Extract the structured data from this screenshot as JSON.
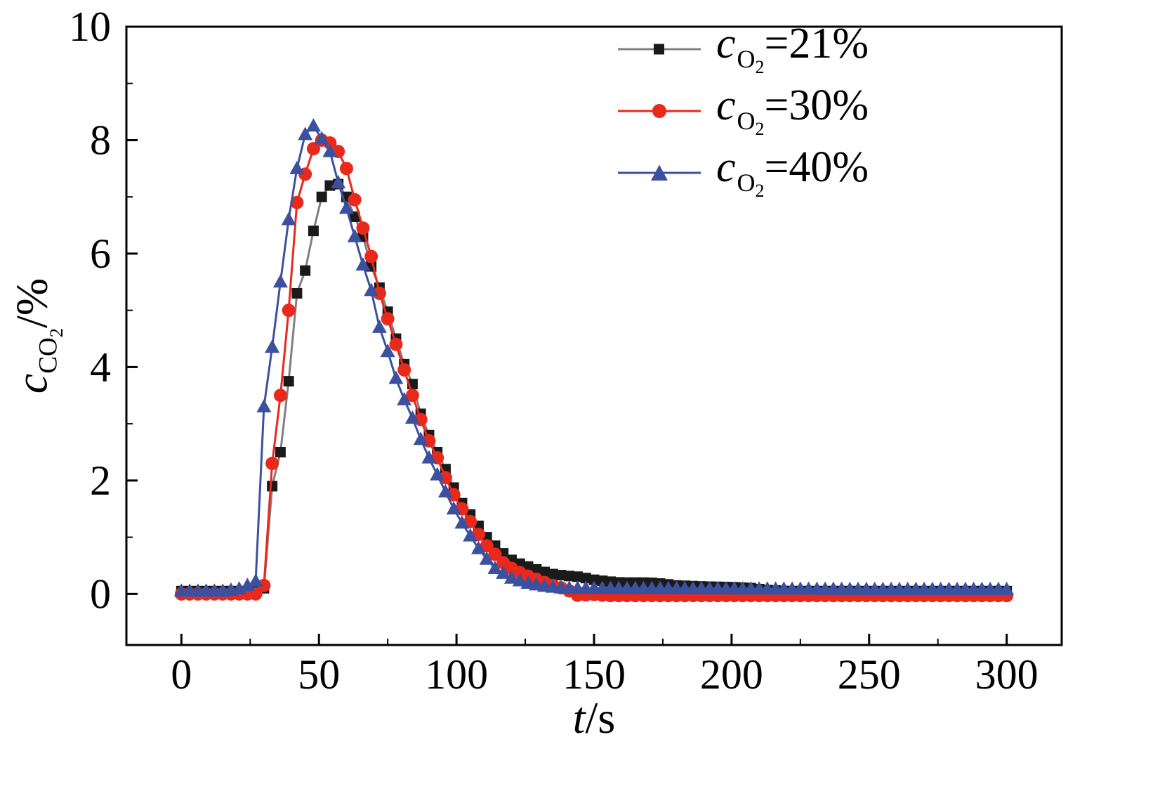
{
  "chart_data": {
    "type": "line",
    "title": "",
    "xlabel": "t/s",
    "ylabel": "c_CO2/%",
    "xlim": [
      -20,
      320
    ],
    "ylim": [
      -0.9,
      10
    ],
    "x_ticks": [
      0,
      50,
      100,
      150,
      200,
      250,
      300
    ],
    "y_ticks": [
      0,
      2,
      4,
      6,
      8,
      10
    ],
    "x_minor_step": 25,
    "y_minor_step": 1,
    "grid": false,
    "legend_position": "top-right-inside",
    "marker_resample_step": 3,
    "series": [
      {
        "id": "co2-21",
        "name": "cO2=21%",
        "marker": "square",
        "color": "#1a1a1a",
        "line_color": "#808080",
        "x": [
          0,
          20,
          27,
          30,
          32,
          33,
          34,
          35,
          36,
          37,
          38,
          40,
          41,
          42,
          43,
          45,
          47,
          48,
          50,
          52,
          54,
          56,
          58,
          60,
          62,
          64,
          66,
          68,
          70,
          72,
          74,
          76,
          78,
          80,
          82,
          84,
          86,
          88,
          90,
          92,
          94,
          96,
          98,
          100,
          102,
          104,
          106,
          108,
          110,
          112,
          114,
          116,
          118,
          120,
          122,
          125,
          128,
          131,
          135,
          140,
          145,
          150,
          155,
          160,
          170,
          175,
          180,
          190,
          200,
          208,
          212,
          220,
          250,
          300
        ],
        "y": [
          0.05,
          0.05,
          0.05,
          0.1,
          0.3,
          1.9,
          2.0,
          2.4,
          2.5,
          3.0,
          3.3,
          4.2,
          5.0,
          5.3,
          5.45,
          5.7,
          5.75,
          6.4,
          6.9,
          7.1,
          7.2,
          7.25,
          7.2,
          7.0,
          6.8,
          6.5,
          6.3,
          5.9,
          5.65,
          5.4,
          5.15,
          4.8,
          4.5,
          4.2,
          3.9,
          3.7,
          3.3,
          3.05,
          2.8,
          2.6,
          2.4,
          2.2,
          2.0,
          1.75,
          1.6,
          1.45,
          1.35,
          1.2,
          1.05,
          0.95,
          0.85,
          0.75,
          0.68,
          0.6,
          0.55,
          0.5,
          0.45,
          0.4,
          0.35,
          0.32,
          0.3,
          0.25,
          0.22,
          0.2,
          0.2,
          0.18,
          0.15,
          0.13,
          0.12,
          0.1,
          0.07,
          0.05,
          0.05,
          0.05
        ]
      },
      {
        "id": "co2-30",
        "name": "cO2=30%",
        "marker": "circle",
        "color": "#e8291c",
        "line_color": "#e8291c",
        "x": [
          0,
          20,
          28,
          30,
          31,
          32,
          33,
          34,
          35,
          36,
          37,
          38,
          39,
          40,
          41,
          42,
          43,
          45,
          46,
          48,
          50,
          52,
          54,
          56,
          58,
          60,
          62,
          64,
          66,
          68,
          70,
          71,
          72,
          74,
          76,
          78,
          80,
          82,
          84,
          86,
          88,
          90,
          92,
          94,
          96,
          98,
          100,
          102,
          104,
          106,
          108,
          110,
          112,
          114,
          116,
          118,
          120,
          122,
          125,
          128,
          131,
          135,
          140,
          145,
          148,
          155,
          200,
          250,
          300
        ],
        "y": [
          0.0,
          0.0,
          0.0,
          0.15,
          0.3,
          2.0,
          2.3,
          2.6,
          3.0,
          3.5,
          4.3,
          4.4,
          5.0,
          6.0,
          6.3,
          6.9,
          7.0,
          7.4,
          7.6,
          7.85,
          8.0,
          8.0,
          7.95,
          7.85,
          7.75,
          7.5,
          7.1,
          6.8,
          6.45,
          6.1,
          5.8,
          5.65,
          5.3,
          5.0,
          4.7,
          4.4,
          4.1,
          3.8,
          3.5,
          3.2,
          2.95,
          2.7,
          2.5,
          2.3,
          2.05,
          1.85,
          1.65,
          1.5,
          1.35,
          1.2,
          1.05,
          0.9,
          0.8,
          0.7,
          0.6,
          0.5,
          0.45,
          0.4,
          0.33,
          0.28,
          0.22,
          0.15,
          0.08,
          -0.05,
          0.0,
          -0.03,
          -0.03,
          -0.03,
          -0.03
        ]
      },
      {
        "id": "co2-40",
        "name": "cO2=40%",
        "marker": "triangle",
        "color": "#3c50a0",
        "line_color": "#3c50a0",
        "x": [
          0,
          15,
          20,
          22,
          24,
          26,
          28,
          29,
          30,
          31,
          32,
          33,
          34,
          35,
          36,
          37,
          38,
          39,
          40,
          41,
          42,
          43,
          44,
          45,
          46,
          47,
          48,
          50,
          52,
          54,
          55,
          56,
          58,
          60,
          62,
          63,
          64,
          66,
          68,
          70,
          71,
          72,
          74,
          76,
          78,
          80,
          82,
          84,
          86,
          88,
          90,
          92,
          94,
          96,
          98,
          100,
          102,
          104,
          106,
          108,
          110,
          112,
          114,
          116,
          118,
          120,
          122,
          125,
          130,
          135,
          140,
          150,
          200,
          250,
          300
        ],
        "y": [
          0.05,
          0.05,
          0.08,
          0.1,
          0.15,
          0.2,
          0.25,
          0.3,
          3.3,
          3.35,
          4.0,
          4.35,
          5.0,
          5.4,
          5.5,
          6.0,
          6.3,
          6.6,
          7.0,
          7.3,
          7.5,
          7.8,
          8.0,
          8.1,
          8.2,
          8.3,
          8.25,
          8.1,
          7.95,
          7.8,
          7.6,
          7.4,
          7.1,
          6.8,
          6.5,
          6.3,
          6.1,
          5.8,
          5.5,
          5.2,
          4.9,
          4.7,
          4.45,
          4.1,
          3.8,
          3.55,
          3.3,
          3.1,
          2.85,
          2.6,
          2.4,
          2.2,
          2.0,
          1.8,
          1.6,
          1.4,
          1.25,
          1.1,
          0.95,
          0.8,
          0.68,
          0.55,
          0.45,
          0.4,
          0.33,
          0.28,
          0.25,
          0.2,
          0.15,
          0.12,
          0.1,
          0.1,
          0.09,
          0.08,
          0.08
        ]
      }
    ]
  },
  "axis": {
    "xlabel_parts": {
      "var": "t",
      "suffix": "/s"
    },
    "ylabel_parts": {
      "var": "c",
      "sub": "CO",
      "subsub": "2",
      "suffix": "/%"
    }
  },
  "legend": {
    "items": [
      {
        "var": "c",
        "sub": "O",
        "subsub": "2",
        "eq": "=21%",
        "marker": "square",
        "color": "#1a1a1a",
        "line_color": "#808080"
      },
      {
        "var": "c",
        "sub": "O",
        "subsub": "2",
        "eq": "=30%",
        "marker": "circle",
        "color": "#e8291c",
        "line_color": "#e8291c"
      },
      {
        "var": "c",
        "sub": "O",
        "subsub": "2",
        "eq": "=40%",
        "marker": "triangle",
        "color": "#3c50a0",
        "line_color": "#3c50a0"
      }
    ]
  }
}
